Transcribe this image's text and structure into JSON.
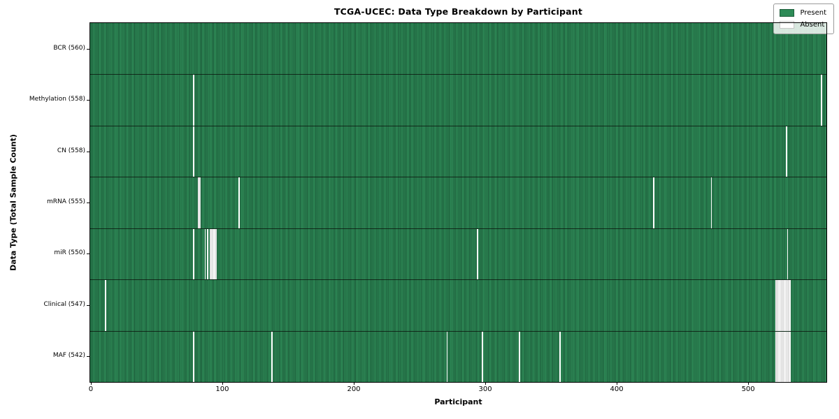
{
  "chart_data": {
    "type": "heatmap",
    "title": "TCGA-UCEC: Data Type Breakdown by Participant",
    "xlabel": "Participant",
    "ylabel": "Data Type (Total Sample Count)",
    "x_ticks": [
      0,
      100,
      200,
      300,
      400,
      500
    ],
    "x_range": [
      -0.5,
      559.5
    ],
    "n_participants": 560,
    "grid": false,
    "colors": {
      "present": "#2e8b57",
      "present_edge": "#1d5e3b",
      "absent": "#ffffff",
      "absent_edge": "#c8c8c8",
      "row_divider": "#14181a",
      "figure_background": "#ffffff"
    },
    "legend": {
      "position": "upper-right",
      "entries": [
        {
          "label": "Present",
          "color": "#2e8b57"
        },
        {
          "label": "Absent",
          "color": "#ffffff"
        }
      ]
    },
    "rows": [
      {
        "label": "BCR (560)",
        "data_type": "BCR",
        "total_sample_count": 560,
        "absent_ranges": []
      },
      {
        "label": "Methylation (558)",
        "data_type": "Methylation",
        "total_sample_count": 558,
        "absent_ranges": [
          [
            78,
            78
          ],
          [
            556,
            556
          ]
        ]
      },
      {
        "label": "CN (558)",
        "data_type": "CN",
        "total_sample_count": 558,
        "absent_ranges": [
          [
            78,
            78
          ],
          [
            529,
            529
          ]
        ]
      },
      {
        "label": "mRNA (555)",
        "data_type": "mRNA",
        "total_sample_count": 555,
        "absent_ranges": [
          [
            82,
            83
          ],
          [
            113,
            113
          ],
          [
            428,
            428
          ],
          [
            472,
            472
          ]
        ]
      },
      {
        "label": "miR (550)",
        "data_type": "miR",
        "total_sample_count": 550,
        "absent_ranges": [
          [
            78,
            78
          ],
          [
            87,
            87
          ],
          [
            89,
            89
          ],
          [
            91,
            95
          ],
          [
            294,
            294
          ],
          [
            530,
            530
          ]
        ]
      },
      {
        "label": "Clinical (547)",
        "data_type": "Clinical",
        "total_sample_count": 547,
        "absent_ranges": [
          [
            11,
            11
          ],
          [
            521,
            532
          ]
        ]
      },
      {
        "label": "MAF (542)",
        "data_type": "MAF",
        "total_sample_count": 542,
        "absent_ranges": [
          [
            78,
            78
          ],
          [
            138,
            138
          ],
          [
            271,
            271
          ],
          [
            298,
            298
          ],
          [
            326,
            326
          ],
          [
            357,
            357
          ],
          [
            521,
            532
          ]
        ]
      }
    ]
  }
}
